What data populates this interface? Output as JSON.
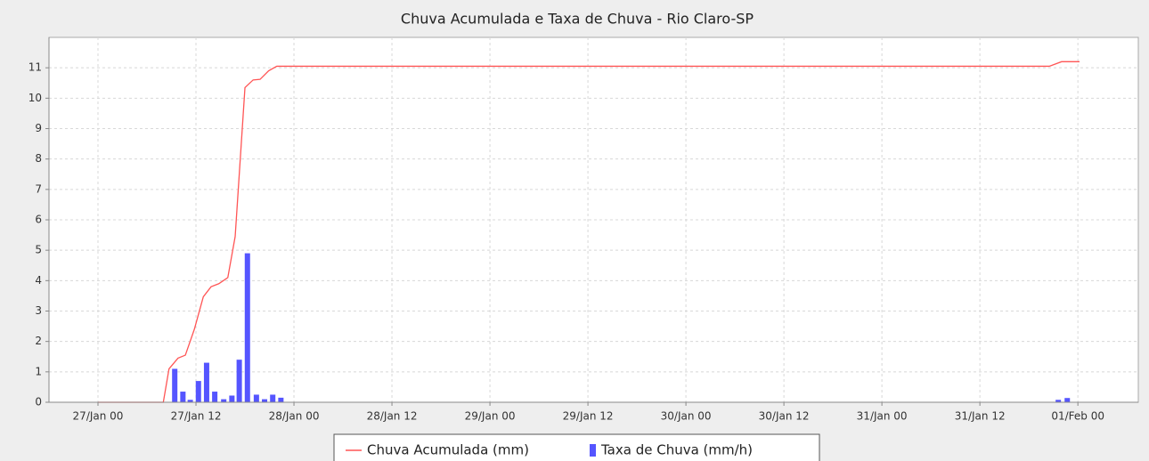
{
  "chart_data": {
    "type": "line-bar",
    "title": "Chuva Acumulada e Taxa de Chuva - Rio Claro-SP",
    "xlim": [
      -6,
      127.4
    ],
    "xticks": [
      {
        "value": 0,
        "label": "27/Jan 00"
      },
      {
        "value": 12,
        "label": "27/Jan 12"
      },
      {
        "value": 24,
        "label": "28/Jan 00"
      },
      {
        "value": 36,
        "label": "28/Jan 12"
      },
      {
        "value": 48,
        "label": "29/Jan 00"
      },
      {
        "value": 60,
        "label": "29/Jan 12"
      },
      {
        "value": 72,
        "label": "30/Jan 00"
      },
      {
        "value": 84,
        "label": "30/Jan 12"
      },
      {
        "value": 96,
        "label": "31/Jan 00"
      },
      {
        "value": 108,
        "label": "31/Jan 12"
      },
      {
        "value": 120,
        "label": "01/Feb 00"
      }
    ],
    "ylim": [
      0,
      12
    ],
    "yticks": [
      0,
      1,
      2,
      3,
      4,
      5,
      6,
      7,
      8,
      9,
      10,
      11
    ],
    "grid": true,
    "legend": "bottom",
    "series": [
      {
        "name": "Chuva Acumulada (mm)",
        "type": "line",
        "color": "#ff5555",
        "x": [
          0,
          8,
          8.7,
          9.8,
          10.7,
          11.8,
          12.9,
          13.85,
          14.8,
          15.9,
          16.8,
          18,
          19,
          19.85,
          20.9,
          21.9,
          116.5,
          118,
          120.2
        ],
        "values": [
          0,
          0,
          1.1,
          1.45,
          1.55,
          2.4,
          3.47,
          3.8,
          3.9,
          4.1,
          5.45,
          10.35,
          10.6,
          10.62,
          10.9,
          11.05,
          11.05,
          11.2,
          11.2
        ]
      },
      {
        "name": "Taxa de Chuva (mm/h)",
        "type": "bar",
        "color": "#5555ff",
        "x": [
          9.4,
          10.4,
          11.3,
          12.3,
          13.3,
          14.3,
          15.4,
          16.4,
          17.3,
          18.3,
          19.4,
          20.4,
          21.4,
          22.4,
          117.6,
          118.7
        ],
        "values": [
          1.1,
          0.35,
          0.08,
          0.7,
          1.3,
          0.35,
          0.1,
          0.22,
          1.4,
          4.9,
          0.25,
          0.1,
          0.25,
          0.15,
          0.08,
          0.14
        ]
      }
    ]
  }
}
